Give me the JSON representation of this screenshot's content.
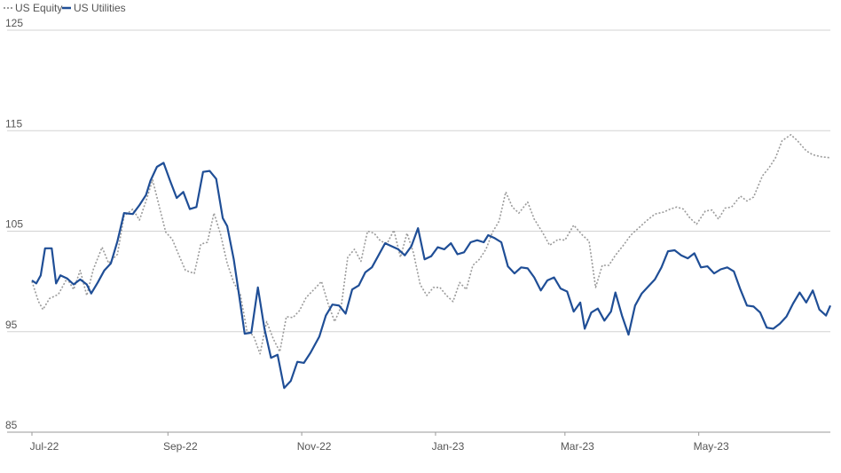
{
  "chart_data": {
    "type": "line",
    "title": "",
    "xlabel": "",
    "ylabel": "",
    "x_start": "2022-07-01",
    "x_end": "2023-06-30",
    "ylim": [
      85,
      125
    ],
    "yticks": [
      85,
      95,
      105,
      115,
      125
    ],
    "xticks": [
      {
        "label": "Jul-22",
        "date": "2022-07-01"
      },
      {
        "label": "Sep-22",
        "date": "2022-09-01"
      },
      {
        "label": "Nov-22",
        "date": "2022-11-01"
      },
      {
        "label": "Jan-23",
        "date": "2023-01-01"
      },
      {
        "label": "Mar-23",
        "date": "2023-03-01"
      },
      {
        "label": "May-23",
        "date": "2023-05-01"
      }
    ],
    "grid": true,
    "legend_position": "top-left",
    "series": [
      {
        "name": "US Equity",
        "color": "#9b9b9b",
        "style": "dotted",
        "points": [
          [
            "2022-07-01",
            100.0
          ],
          [
            "2022-07-04",
            98.0
          ],
          [
            "2022-07-06",
            97.2
          ],
          [
            "2022-07-09",
            98.3
          ],
          [
            "2022-07-13",
            98.7
          ],
          [
            "2022-07-17",
            100.3
          ],
          [
            "2022-07-20",
            99.2
          ],
          [
            "2022-07-23",
            101.1
          ],
          [
            "2022-07-26",
            98.6
          ],
          [
            "2022-07-29",
            101.2
          ],
          [
            "2022-08-02",
            103.4
          ],
          [
            "2022-08-05",
            101.8
          ],
          [
            "2022-08-09",
            102.7
          ],
          [
            "2022-08-12",
            106.5
          ],
          [
            "2022-08-16",
            107.2
          ],
          [
            "2022-08-19",
            106.1
          ],
          [
            "2022-08-22",
            108.0
          ],
          [
            "2022-08-25",
            110.1
          ],
          [
            "2022-08-28",
            107.5
          ],
          [
            "2022-08-31",
            104.9
          ],
          [
            "2022-09-03",
            104.2
          ],
          [
            "2022-09-06",
            102.6
          ],
          [
            "2022-09-09",
            101.1
          ],
          [
            "2022-09-13",
            100.8
          ],
          [
            "2022-09-16",
            103.7
          ],
          [
            "2022-09-19",
            103.9
          ],
          [
            "2022-09-22",
            106.8
          ],
          [
            "2022-09-25",
            104.7
          ],
          [
            "2022-09-28",
            101.8
          ],
          [
            "2022-10-01",
            99.9
          ],
          [
            "2022-10-04",
            98.7
          ],
          [
            "2022-10-07",
            95.1
          ],
          [
            "2022-10-10",
            94.6
          ],
          [
            "2022-10-13",
            92.8
          ],
          [
            "2022-10-16",
            96.0
          ],
          [
            "2022-10-19",
            94.3
          ],
          [
            "2022-10-22",
            93.0
          ],
          [
            "2022-10-25",
            96.5
          ],
          [
            "2022-10-28",
            96.4
          ],
          [
            "2022-10-31",
            97.1
          ],
          [
            "2022-11-03",
            98.4
          ],
          [
            "2022-11-07",
            99.3
          ],
          [
            "2022-11-10",
            100.0
          ],
          [
            "2022-11-13",
            97.8
          ],
          [
            "2022-11-16",
            96.0
          ],
          [
            "2022-11-19",
            97.5
          ],
          [
            "2022-11-22",
            102.4
          ],
          [
            "2022-11-25",
            103.2
          ],
          [
            "2022-11-28",
            102.0
          ],
          [
            "2022-12-01",
            105.0
          ],
          [
            "2022-12-04",
            104.8
          ],
          [
            "2022-12-07",
            104.0
          ],
          [
            "2022-12-10",
            103.8
          ],
          [
            "2022-12-13",
            105.1
          ],
          [
            "2022-12-16",
            102.4
          ],
          [
            "2022-12-19",
            104.8
          ],
          [
            "2022-12-22",
            102.8
          ],
          [
            "2022-12-25",
            99.7
          ],
          [
            "2022-12-28",
            98.6
          ],
          [
            "2022-12-31",
            99.4
          ],
          [
            "2023-01-03",
            99.4
          ],
          [
            "2023-01-06",
            98.6
          ],
          [
            "2023-01-09",
            98.0
          ],
          [
            "2023-01-12",
            99.9
          ],
          [
            "2023-01-15",
            99.2
          ],
          [
            "2023-01-18",
            101.6
          ],
          [
            "2023-01-21",
            102.2
          ],
          [
            "2023-01-24",
            103.2
          ],
          [
            "2023-01-27",
            104.9
          ],
          [
            "2023-01-30",
            106.0
          ],
          [
            "2023-02-02",
            108.9
          ],
          [
            "2023-02-05",
            107.4
          ],
          [
            "2023-02-08",
            106.8
          ],
          [
            "2023-02-12",
            107.9
          ],
          [
            "2023-02-15",
            106.2
          ],
          [
            "2023-02-19",
            104.8
          ],
          [
            "2023-02-22",
            103.6
          ],
          [
            "2023-02-26",
            104.2
          ],
          [
            "2023-03-01",
            104.1
          ],
          [
            "2023-03-05",
            105.6
          ],
          [
            "2023-03-09",
            104.6
          ],
          [
            "2023-03-12",
            104.0
          ],
          [
            "2023-03-15",
            99.4
          ],
          [
            "2023-03-18",
            101.6
          ],
          [
            "2023-03-21",
            101.6
          ],
          [
            "2023-03-24",
            102.6
          ],
          [
            "2023-03-28",
            103.7
          ],
          [
            "2023-03-31",
            104.6
          ],
          [
            "2023-04-04",
            105.4
          ],
          [
            "2023-04-07",
            106.0
          ],
          [
            "2023-04-11",
            106.7
          ],
          [
            "2023-04-15",
            106.9
          ],
          [
            "2023-04-18",
            107.2
          ],
          [
            "2023-04-21",
            107.4
          ],
          [
            "2023-04-24",
            107.2
          ],
          [
            "2023-04-27",
            106.3
          ],
          [
            "2023-04-30",
            105.7
          ],
          [
            "2023-05-04",
            107.0
          ],
          [
            "2023-05-07",
            107.1
          ],
          [
            "2023-05-10",
            106.2
          ],
          [
            "2023-05-13",
            107.3
          ],
          [
            "2023-05-16",
            107.4
          ],
          [
            "2023-05-20",
            108.5
          ],
          [
            "2023-05-23",
            108.0
          ],
          [
            "2023-05-26",
            108.4
          ],
          [
            "2023-05-30",
            110.5
          ],
          [
            "2023-06-02",
            111.3
          ],
          [
            "2023-06-05",
            112.3
          ],
          [
            "2023-06-08",
            114.0
          ],
          [
            "2023-06-12",
            114.6
          ],
          [
            "2023-06-15",
            114.0
          ],
          [
            "2023-06-19",
            113.0
          ],
          [
            "2023-06-22",
            112.6
          ],
          [
            "2023-06-26",
            112.4
          ],
          [
            "2023-06-30",
            112.3
          ]
        ]
      },
      {
        "name": "US Utilities",
        "color": "#1f4e96",
        "style": "solid",
        "points": [
          [
            "2022-07-01",
            100.1
          ],
          [
            "2022-07-03",
            99.8
          ],
          [
            "2022-07-05",
            100.6
          ],
          [
            "2022-07-07",
            103.3
          ],
          [
            "2022-07-10",
            103.3
          ],
          [
            "2022-07-12",
            99.8
          ],
          [
            "2022-07-14",
            100.6
          ],
          [
            "2022-07-17",
            100.3
          ],
          [
            "2022-07-20",
            99.7
          ],
          [
            "2022-07-23",
            100.2
          ],
          [
            "2022-07-26",
            99.7
          ],
          [
            "2022-07-28",
            98.8
          ],
          [
            "2022-07-31",
            99.9
          ],
          [
            "2022-08-03",
            101.1
          ],
          [
            "2022-08-06",
            101.8
          ],
          [
            "2022-08-09",
            104.0
          ],
          [
            "2022-08-12",
            106.8
          ],
          [
            "2022-08-16",
            106.7
          ],
          [
            "2022-08-19",
            107.6
          ],
          [
            "2022-08-22",
            108.6
          ],
          [
            "2022-08-24",
            110.0
          ],
          [
            "2022-08-27",
            111.4
          ],
          [
            "2022-08-30",
            111.8
          ],
          [
            "2022-09-02",
            110.0
          ],
          [
            "2022-09-05",
            108.3
          ],
          [
            "2022-09-08",
            108.9
          ],
          [
            "2022-09-11",
            107.2
          ],
          [
            "2022-09-14",
            107.4
          ],
          [
            "2022-09-17",
            110.9
          ],
          [
            "2022-09-20",
            111.0
          ],
          [
            "2022-09-23",
            110.2
          ],
          [
            "2022-09-26",
            106.3
          ],
          [
            "2022-09-28",
            105.5
          ],
          [
            "2022-10-01",
            102.2
          ],
          [
            "2022-10-03",
            99.3
          ],
          [
            "2022-10-06",
            94.8
          ],
          [
            "2022-10-09",
            94.9
          ],
          [
            "2022-10-12",
            99.4
          ],
          [
            "2022-10-15",
            95.3
          ],
          [
            "2022-10-18",
            92.4
          ],
          [
            "2022-10-21",
            92.7
          ],
          [
            "2022-10-24",
            89.4
          ],
          [
            "2022-10-27",
            90.1
          ],
          [
            "2022-10-30",
            92.0
          ],
          [
            "2022-11-02",
            91.9
          ],
          [
            "2022-11-05",
            92.9
          ],
          [
            "2022-11-09",
            94.5
          ],
          [
            "2022-11-12",
            96.6
          ],
          [
            "2022-11-15",
            97.7
          ],
          [
            "2022-11-18",
            97.6
          ],
          [
            "2022-11-21",
            96.8
          ],
          [
            "2022-11-24",
            99.2
          ],
          [
            "2022-11-27",
            99.6
          ],
          [
            "2022-11-30",
            100.9
          ],
          [
            "2022-12-03",
            101.4
          ],
          [
            "2022-12-06",
            102.6
          ],
          [
            "2022-12-09",
            103.8
          ],
          [
            "2022-12-12",
            103.5
          ],
          [
            "2022-12-15",
            103.2
          ],
          [
            "2022-12-18",
            102.6
          ],
          [
            "2022-12-21",
            103.5
          ],
          [
            "2022-12-24",
            105.3
          ],
          [
            "2022-12-27",
            102.2
          ],
          [
            "2022-12-30",
            102.5
          ],
          [
            "2023-01-02",
            103.4
          ],
          [
            "2023-01-05",
            103.2
          ],
          [
            "2023-01-08",
            103.8
          ],
          [
            "2023-01-11",
            102.7
          ],
          [
            "2023-01-14",
            102.9
          ],
          [
            "2023-01-17",
            103.9
          ],
          [
            "2023-01-20",
            104.1
          ],
          [
            "2023-01-23",
            103.9
          ],
          [
            "2023-01-25",
            104.6
          ],
          [
            "2023-01-28",
            104.3
          ],
          [
            "2023-01-31",
            103.9
          ],
          [
            "2023-02-03",
            101.5
          ],
          [
            "2023-02-06",
            100.8
          ],
          [
            "2023-02-09",
            101.4
          ],
          [
            "2023-02-12",
            101.3
          ],
          [
            "2023-02-15",
            100.4
          ],
          [
            "2023-02-18",
            99.1
          ],
          [
            "2023-02-21",
            100.1
          ],
          [
            "2023-02-24",
            100.4
          ],
          [
            "2023-02-27",
            99.3
          ],
          [
            "2023-03-02",
            99.0
          ],
          [
            "2023-03-05",
            97.0
          ],
          [
            "2023-03-08",
            97.9
          ],
          [
            "2023-03-10",
            95.3
          ],
          [
            "2023-03-13",
            96.9
          ],
          [
            "2023-03-16",
            97.3
          ],
          [
            "2023-03-19",
            96.1
          ],
          [
            "2023-03-22",
            97.0
          ],
          [
            "2023-03-24",
            98.9
          ],
          [
            "2023-03-27",
            96.6
          ],
          [
            "2023-03-30",
            94.7
          ],
          [
            "2023-04-02",
            97.6
          ],
          [
            "2023-04-05",
            98.8
          ],
          [
            "2023-04-08",
            99.5
          ],
          [
            "2023-04-11",
            100.2
          ],
          [
            "2023-04-14",
            101.4
          ],
          [
            "2023-04-17",
            103.0
          ],
          [
            "2023-04-20",
            103.1
          ],
          [
            "2023-04-23",
            102.6
          ],
          [
            "2023-04-26",
            102.3
          ],
          [
            "2023-04-29",
            102.8
          ],
          [
            "2023-05-02",
            101.4
          ],
          [
            "2023-05-05",
            101.5
          ],
          [
            "2023-05-08",
            100.8
          ],
          [
            "2023-05-11",
            101.2
          ],
          [
            "2023-05-14",
            101.4
          ],
          [
            "2023-05-17",
            101.0
          ],
          [
            "2023-05-20",
            99.2
          ],
          [
            "2023-05-23",
            97.6
          ],
          [
            "2023-05-26",
            97.5
          ],
          [
            "2023-05-29",
            96.9
          ],
          [
            "2023-06-01",
            95.4
          ],
          [
            "2023-06-04",
            95.3
          ],
          [
            "2023-06-07",
            95.8
          ],
          [
            "2023-06-10",
            96.5
          ],
          [
            "2023-06-13",
            97.8
          ],
          [
            "2023-06-16",
            98.9
          ],
          [
            "2023-06-19",
            97.9
          ],
          [
            "2023-06-22",
            99.1
          ],
          [
            "2023-06-25",
            97.2
          ],
          [
            "2023-06-28",
            96.6
          ],
          [
            "2023-06-30",
            97.6
          ]
        ]
      }
    ]
  }
}
